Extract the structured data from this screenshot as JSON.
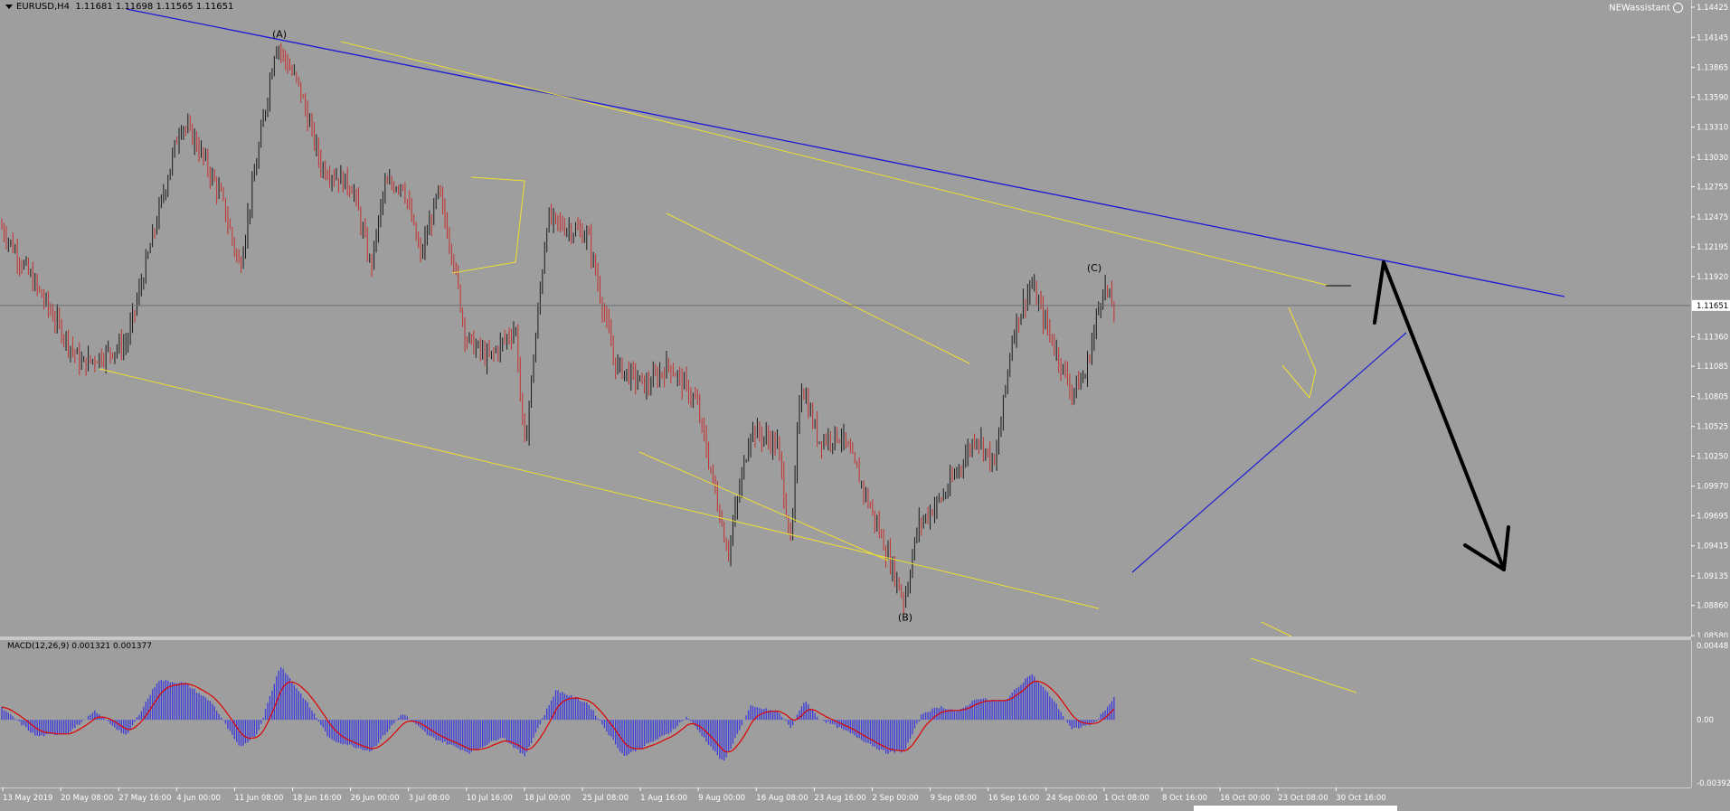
{
  "chart_header": {
    "symbol": "EURUSD,H4",
    "ohlc": "1.11681 1.11698 1.11565 1.11651"
  },
  "expert": {
    "label": "NEWassistant",
    "icon": "smiley-icon"
  },
  "indicator": {
    "label": "MACD(12,26,9) 0.001321 0.001377"
  },
  "current_price_label": "1.11651",
  "colors": {
    "background": "#9e9e9e",
    "bull_candle": "#1a1a1a",
    "bear_candle": "#c43030",
    "trendline_blue": "#1a1ad6",
    "trendline_yellow": "#f0e030",
    "macd_histogram": "#3c3cdc",
    "macd_signal": "#e00000",
    "arrow": "#000000"
  },
  "chart_data": [
    {
      "type": "candlestick",
      "symbol": "EURUSD",
      "timeframe": "H4",
      "ylim": [
        1.0858,
        1.14425
      ],
      "price_ticks": [
        "1.14425",
        "1.14145",
        "1.13865",
        "1.13590",
        "1.13310",
        "1.13030",
        "1.12755",
        "1.12475",
        "1.12195",
        "1.11920",
        "1.11651",
        "1.11360",
        "1.11085",
        "1.10805",
        "1.10525",
        "1.10250",
        "1.09970",
        "1.09695",
        "1.09415",
        "1.09135",
        "1.08860",
        "1.08580"
      ],
      "time_ticks": [
        "13 May 2019",
        "20 May 08:00",
        "27 May 16:00",
        "4 Jun 00:00",
        "11 Jun 08:00",
        "18 Jun 16:00",
        "26 Jun 00:00",
        "3 Jul 08:00",
        "10 Jul 16:00",
        "18 Jul 00:00",
        "25 Jul 08:00",
        "1 Aug 16:00",
        "9 Aug 00:00",
        "16 Aug 08:00",
        "23 Aug 16:00",
        "2 Sep 00:00",
        "9 Sep 08:00",
        "16 Sep 16:00",
        "24 Sep 00:00",
        "1 Oct 08:00",
        "8 Oct 16:00",
        "16 Oct 00:00",
        "23 Oct 08:00",
        "30 Oct 16:00"
      ],
      "price_path": [
        [
          0,
          1.124
        ],
        [
          90,
          1.111
        ],
        [
          140,
          1.113
        ],
        [
          200,
          1.1335
        ],
        [
          215,
          1.132
        ],
        [
          245,
          1.1265
        ],
        [
          265,
          1.12
        ],
        [
          305,
          1.141
        ],
        [
          330,
          1.137
        ],
        [
          355,
          1.1295
        ],
        [
          390,
          1.1275
        ],
        [
          410,
          1.12
        ],
        [
          425,
          1.1275
        ],
        [
          445,
          1.128
        ],
        [
          465,
          1.121
        ],
        [
          485,
          1.127
        ],
        [
          500,
          1.1215
        ],
        [
          515,
          1.1135
        ],
        [
          540,
          1.1115
        ],
        [
          570,
          1.1145
        ],
        [
          580,
          1.103
        ],
        [
          605,
          1.1245
        ],
        [
          650,
          1.123
        ],
        [
          680,
          1.111
        ],
        [
          715,
          1.109
        ],
        [
          740,
          1.111
        ],
        [
          770,
          1.1075
        ],
        [
          800,
          1.0955
        ],
        [
          805,
          1.0935
        ],
        [
          830,
          1.105
        ],
        [
          860,
          1.1035
        ],
        [
          875,
          1.094
        ],
        [
          885,
          1.1095
        ],
        [
          905,
          1.104
        ],
        [
          930,
          1.1045
        ],
        [
          950,
          1.1005
        ],
        [
          970,
          1.096
        ],
        [
          1000,
          1.089
        ],
        [
          1015,
          1.096
        ],
        [
          1045,
          1.099
        ],
        [
          1080,
          1.1045
        ],
        [
          1100,
          1.1015
        ],
        [
          1120,
          1.114
        ],
        [
          1140,
          1.1185
        ],
        [
          1160,
          1.114
        ],
        [
          1185,
          1.1085
        ],
        [
          1200,
          1.11
        ],
        [
          1220,
          1.1185
        ],
        [
          1232,
          1.116
        ]
      ],
      "wave_labels": [
        {
          "text": "(A)",
          "x": 309,
          "price": 1.14145
        },
        {
          "text": "(B)",
          "x": 1001,
          "price": 1.0872
        },
        {
          "text": "(C)",
          "x": 1210,
          "price": 1.1197
        }
      ],
      "current_price": 1.11651
    },
    {
      "type": "macd",
      "params": "12,26,9",
      "values": {
        "main": 0.001321,
        "signal": 0.001377
      },
      "ylim": [
        -0.00392,
        0.00448
      ],
      "ticks": [
        "0.00448",
        "0.00",
        "-0.00392"
      ],
      "profile": [
        [
          0,
          0.0008
        ],
        [
          40,
          -0.001
        ],
        [
          75,
          -0.0008
        ],
        [
          105,
          0.0005
        ],
        [
          140,
          -0.001
        ],
        [
          175,
          0.0024
        ],
        [
          205,
          0.0022
        ],
        [
          235,
          0.001
        ],
        [
          265,
          -0.0017
        ],
        [
          285,
          -0.0008
        ],
        [
          310,
          0.0033
        ],
        [
          340,
          0.001
        ],
        [
          365,
          -0.0012
        ],
        [
          410,
          -0.0019
        ],
        [
          445,
          0.0004
        ],
        [
          475,
          -0.001
        ],
        [
          520,
          -0.002
        ],
        [
          555,
          -0.001
        ],
        [
          580,
          -0.0022
        ],
        [
          615,
          0.0018
        ],
        [
          650,
          0.001
        ],
        [
          690,
          -0.0022
        ],
        [
          740,
          -0.0008
        ],
        [
          760,
          0.0002
        ],
        [
          800,
          -0.0026
        ],
        [
          830,
          0.0008
        ],
        [
          860,
          0.0005
        ],
        [
          875,
          -0.0005
        ],
        [
          890,
          0.0012
        ],
        [
          905,
          0.0001
        ],
        [
          940,
          -0.0008
        ],
        [
          980,
          -0.002
        ],
        [
          1000,
          -0.0019
        ],
        [
          1020,
          0.0004
        ],
        [
          1040,
          0.0008
        ],
        [
          1060,
          0.0005
        ],
        [
          1080,
          0.0013
        ],
        [
          1110,
          0.0011
        ],
        [
          1140,
          0.0028
        ],
        [
          1165,
          0.0012
        ],
        [
          1185,
          -0.0006
        ],
        [
          1210,
          -0.0002
        ],
        [
          1232,
          0.0013
        ]
      ]
    }
  ]
}
